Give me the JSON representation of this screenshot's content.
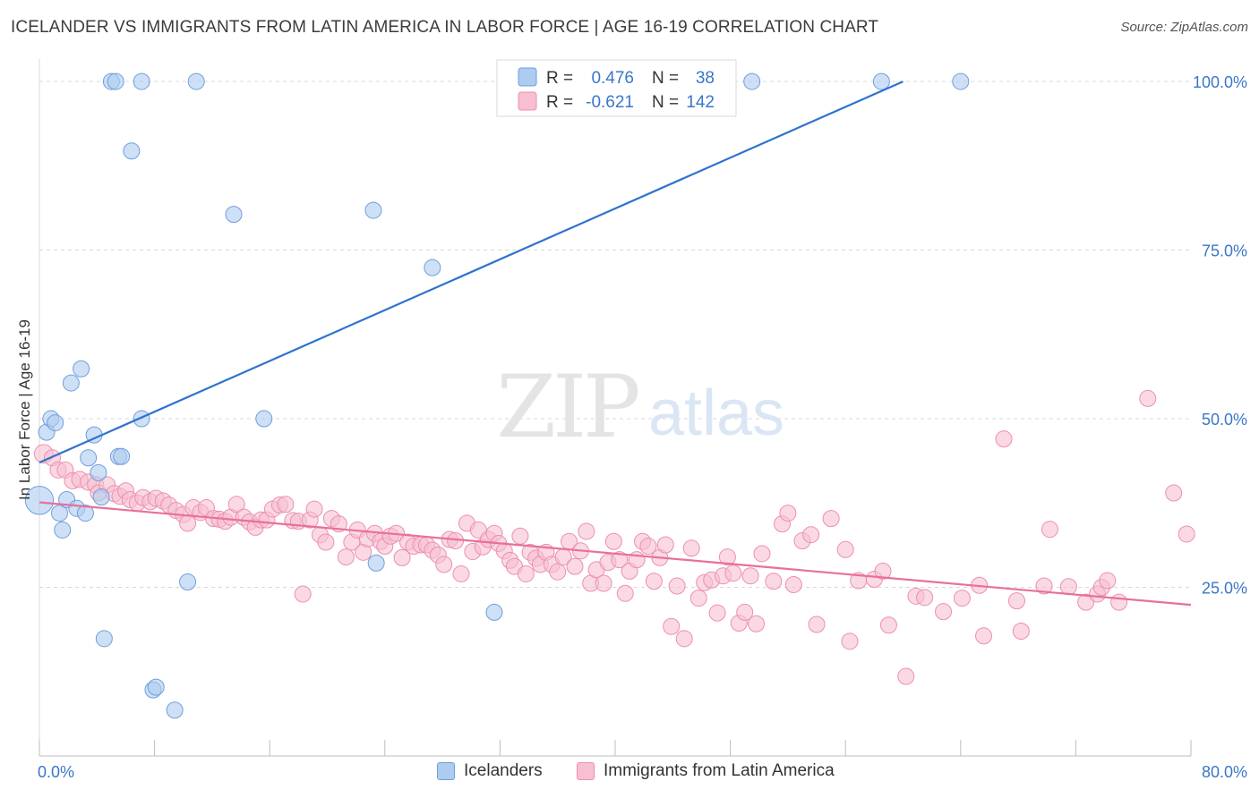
{
  "header": {
    "title": "ICELANDER VS IMMIGRANTS FROM LATIN AMERICA IN LABOR FORCE | AGE 16-19 CORRELATION CHART",
    "source": "Source: ZipAtlas.com"
  },
  "watermark": {
    "zip": "ZIP",
    "atlas": "atlas"
  },
  "legend_stats": [
    {
      "r_label": "R =",
      "r_value": "0.476",
      "n_label": "N =",
      "n_value": "38"
    },
    {
      "r_label": "R =",
      "r_value": "-0.621",
      "n_label": "N =",
      "n_value": "142"
    }
  ],
  "legend_bottom": [
    "Icelanders",
    "Immigrants from Latin America"
  ],
  "colors": {
    "blue_fill": "#aecbf0",
    "blue_stroke": "#6e9fdc",
    "blue_line": "#2f72d0",
    "pink_fill": "#f7bfd1",
    "pink_stroke": "#ec8fb0",
    "pink_line": "#e8709a",
    "axis_text": "#3b76c9",
    "grid": "#d9d9d9"
  },
  "chart_data": {
    "type": "scatter",
    "title": "ICELANDER VS IMMIGRANTS FROM LATIN AMERICA IN LABOR FORCE | AGE 16-19 CORRELATION CHART",
    "xlabel": "",
    "ylabel": "In Labor Force | Age 16-19",
    "xlim": [
      0,
      80
    ],
    "ylim": [
      0,
      102
    ],
    "x_tick_labels": [
      "0.0%",
      "80.0%"
    ],
    "y_ticks": [
      25,
      50,
      75,
      100
    ],
    "y_tick_labels": [
      "25.0%",
      "50.0%",
      "75.0%",
      "100.0%"
    ],
    "grid": true,
    "legend_position": "top-center",
    "series": [
      {
        "name": "Icelanders",
        "r": 0.476,
        "n": 38,
        "trend": {
          "x0": 0,
          "y0": 43.5,
          "x1": 60,
          "y1": 100
        },
        "points": [
          [
            0.0,
            37.9,
            22
          ],
          [
            0.5,
            48.0,
            12
          ],
          [
            0.8,
            50.0,
            12
          ],
          [
            1.1,
            49.4,
            12
          ],
          [
            1.4,
            36.0,
            12
          ],
          [
            1.6,
            33.5,
            12
          ],
          [
            1.9,
            38.0,
            12
          ],
          [
            2.2,
            55.3,
            12
          ],
          [
            2.6,
            36.7,
            12
          ],
          [
            2.9,
            57.4,
            12
          ],
          [
            3.2,
            36.0,
            12
          ],
          [
            3.4,
            44.2,
            12
          ],
          [
            3.8,
            47.6,
            12
          ],
          [
            4.1,
            42.0,
            12
          ],
          [
            4.3,
            38.4,
            12
          ],
          [
            4.5,
            17.4,
            12
          ],
          [
            5.0,
            100.0,
            12
          ],
          [
            5.3,
            100.0,
            12
          ],
          [
            5.5,
            44.4,
            12
          ],
          [
            5.7,
            44.4,
            12
          ],
          [
            6.4,
            89.7,
            12
          ],
          [
            7.1,
            50.0,
            12
          ],
          [
            7.1,
            100.0,
            12
          ],
          [
            7.9,
            9.8,
            12
          ],
          [
            8.1,
            10.2,
            12
          ],
          [
            9.4,
            6.8,
            12
          ],
          [
            10.3,
            25.8,
            12
          ],
          [
            10.9,
            100.0,
            12
          ],
          [
            13.5,
            80.3,
            12
          ],
          [
            15.6,
            50.0,
            12
          ],
          [
            23.2,
            80.9,
            12
          ],
          [
            23.4,
            28.6,
            12
          ],
          [
            27.3,
            72.4,
            12
          ],
          [
            31.6,
            21.3,
            12
          ],
          [
            41.2,
            100.0,
            12
          ],
          [
            49.5,
            100.0,
            12
          ],
          [
            58.5,
            100.0,
            12
          ],
          [
            64.0,
            100.0,
            12
          ]
        ]
      },
      {
        "name": "Immigrants from Latin America",
        "r": -0.621,
        "n": 142,
        "trend": {
          "x0": 0,
          "y0": 37.6,
          "x1": 80,
          "y1": 22.4
        },
        "points": [
          [
            0.3,
            44.8,
            14
          ],
          [
            0.9,
            44.2,
            12
          ],
          [
            1.3,
            42.4,
            12
          ],
          [
            1.8,
            42.4,
            12
          ],
          [
            2.3,
            40.8,
            12
          ],
          [
            2.8,
            41.0,
            12
          ],
          [
            3.4,
            40.6,
            12
          ],
          [
            3.9,
            40.2,
            12
          ],
          [
            4.1,
            39.0,
            12
          ],
          [
            4.7,
            40.2,
            12
          ],
          [
            5.2,
            38.9,
            12
          ],
          [
            5.6,
            38.5,
            12
          ],
          [
            6.0,
            39.3,
            12
          ],
          [
            6.3,
            38.0,
            12
          ],
          [
            6.8,
            37.5,
            12
          ],
          [
            7.2,
            38.3,
            12
          ],
          [
            7.7,
            37.7,
            12
          ],
          [
            8.1,
            38.2,
            12
          ],
          [
            8.6,
            37.8,
            12
          ],
          [
            9.0,
            37.2,
            12
          ],
          [
            9.5,
            36.4,
            12
          ],
          [
            10.0,
            35.8,
            12
          ],
          [
            10.3,
            34.5,
            12
          ],
          [
            10.7,
            36.8,
            12
          ],
          [
            11.2,
            36.1,
            12
          ],
          [
            11.6,
            36.8,
            12
          ],
          [
            12.1,
            35.2,
            12
          ],
          [
            12.5,
            35.1,
            12
          ],
          [
            12.9,
            34.8,
            12
          ],
          [
            13.3,
            35.4,
            12
          ],
          [
            13.7,
            37.3,
            12
          ],
          [
            14.2,
            35.4,
            12
          ],
          [
            14.6,
            34.7,
            12
          ],
          [
            15.0,
            33.9,
            12
          ],
          [
            15.4,
            35.0,
            12
          ],
          [
            15.8,
            35.0,
            12
          ],
          [
            16.2,
            36.6,
            12
          ],
          [
            16.7,
            37.2,
            12
          ],
          [
            17.1,
            37.3,
            12
          ],
          [
            17.6,
            34.9,
            12
          ],
          [
            18.0,
            34.8,
            12
          ],
          [
            18.3,
            24.0,
            12
          ],
          [
            18.8,
            35.0,
            12
          ],
          [
            19.1,
            36.6,
            12
          ],
          [
            19.5,
            32.8,
            12
          ],
          [
            19.9,
            31.7,
            12
          ],
          [
            20.3,
            35.2,
            12
          ],
          [
            20.8,
            34.4,
            12
          ],
          [
            21.3,
            29.5,
            12
          ],
          [
            21.7,
            31.7,
            12
          ],
          [
            22.1,
            33.5,
            12
          ],
          [
            22.5,
            30.2,
            12
          ],
          [
            22.8,
            32.2,
            12
          ],
          [
            23.3,
            33.0,
            12
          ],
          [
            23.7,
            31.8,
            12
          ],
          [
            24.0,
            31.1,
            12
          ],
          [
            24.4,
            32.6,
            12
          ],
          [
            24.8,
            33.0,
            12
          ],
          [
            25.2,
            29.4,
            12
          ],
          [
            25.6,
            31.7,
            12
          ],
          [
            26.0,
            31.1,
            12
          ],
          [
            26.5,
            31.3,
            12
          ],
          [
            26.9,
            31.3,
            12
          ],
          [
            27.3,
            30.5,
            12
          ],
          [
            27.7,
            29.8,
            12
          ],
          [
            28.1,
            28.4,
            12
          ],
          [
            28.5,
            32.1,
            12
          ],
          [
            28.9,
            31.9,
            12
          ],
          [
            29.3,
            27.0,
            12
          ],
          [
            29.7,
            34.5,
            12
          ],
          [
            30.1,
            30.3,
            12
          ],
          [
            30.5,
            33.5,
            12
          ],
          [
            30.8,
            31.0,
            12
          ],
          [
            31.2,
            32.1,
            12
          ],
          [
            31.6,
            33.0,
            12
          ],
          [
            31.9,
            31.5,
            12
          ],
          [
            32.3,
            30.4,
            12
          ],
          [
            32.7,
            29.0,
            12
          ],
          [
            33.0,
            28.1,
            12
          ],
          [
            33.4,
            32.6,
            12
          ],
          [
            33.8,
            27.0,
            12
          ],
          [
            34.1,
            30.2,
            12
          ],
          [
            34.5,
            29.3,
            12
          ],
          [
            34.8,
            28.4,
            12
          ],
          [
            35.2,
            30.2,
            12
          ],
          [
            35.6,
            28.4,
            12
          ],
          [
            36.0,
            27.3,
            12
          ],
          [
            36.4,
            29.5,
            12
          ],
          [
            36.8,
            31.8,
            12
          ],
          [
            37.2,
            28.1,
            12
          ],
          [
            37.6,
            30.4,
            12
          ],
          [
            38.0,
            33.3,
            12
          ],
          [
            38.3,
            25.6,
            12
          ],
          [
            38.7,
            27.6,
            12
          ],
          [
            39.2,
            25.6,
            12
          ],
          [
            39.5,
            28.7,
            12
          ],
          [
            39.9,
            31.8,
            12
          ],
          [
            40.3,
            29.1,
            12
          ],
          [
            40.7,
            24.1,
            12
          ],
          [
            41.0,
            27.4,
            12
          ],
          [
            41.5,
            29.1,
            12
          ],
          [
            41.9,
            31.8,
            12
          ],
          [
            42.3,
            31.1,
            12
          ],
          [
            42.7,
            25.9,
            12
          ],
          [
            43.1,
            29.4,
            12
          ],
          [
            43.5,
            31.3,
            12
          ],
          [
            43.9,
            19.2,
            12
          ],
          [
            44.3,
            25.2,
            12
          ],
          [
            44.8,
            17.4,
            12
          ],
          [
            45.3,
            30.8,
            12
          ],
          [
            45.8,
            23.4,
            12
          ],
          [
            46.2,
            25.7,
            12
          ],
          [
            46.7,
            26.1,
            12
          ],
          [
            47.1,
            21.2,
            12
          ],
          [
            47.5,
            26.7,
            12
          ],
          [
            47.8,
            29.5,
            12
          ],
          [
            48.2,
            27.1,
            12
          ],
          [
            48.6,
            19.7,
            12
          ],
          [
            49.0,
            21.3,
            12
          ],
          [
            49.4,
            26.7,
            12
          ],
          [
            49.8,
            19.6,
            12
          ],
          [
            50.2,
            30.0,
            12
          ],
          [
            51.0,
            25.9,
            12
          ],
          [
            51.6,
            34.4,
            12
          ],
          [
            52.0,
            36.0,
            12
          ],
          [
            52.4,
            25.4,
            12
          ],
          [
            53.0,
            31.9,
            12
          ],
          [
            53.6,
            32.8,
            12
          ],
          [
            54.0,
            19.5,
            12
          ],
          [
            55.0,
            35.2,
            12
          ],
          [
            56.0,
            30.6,
            12
          ],
          [
            56.3,
            17.0,
            12
          ],
          [
            56.9,
            26.0,
            12
          ],
          [
            58.0,
            26.2,
            12
          ],
          [
            58.6,
            27.4,
            12
          ],
          [
            59.0,
            19.4,
            12
          ],
          [
            60.2,
            11.8,
            12
          ],
          [
            60.9,
            23.7,
            12
          ],
          [
            61.5,
            23.5,
            12
          ],
          [
            62.8,
            21.4,
            12
          ],
          [
            64.1,
            23.4,
            12
          ],
          [
            65.3,
            25.3,
            12
          ],
          [
            65.6,
            17.8,
            12
          ],
          [
            67.0,
            47.0,
            12
          ],
          [
            67.9,
            23.0,
            12
          ],
          [
            68.2,
            18.5,
            12
          ],
          [
            69.8,
            25.2,
            12
          ],
          [
            70.2,
            33.6,
            12
          ],
          [
            71.5,
            25.1,
            12
          ],
          [
            72.7,
            22.8,
            12
          ],
          [
            73.5,
            24.0,
            12
          ],
          [
            73.8,
            25.0,
            12
          ],
          [
            74.2,
            26.0,
            12
          ],
          [
            75.0,
            22.8,
            12
          ],
          [
            77.0,
            53.0,
            12
          ],
          [
            78.8,
            39.0,
            12
          ],
          [
            79.7,
            32.9,
            12
          ]
        ]
      }
    ]
  }
}
